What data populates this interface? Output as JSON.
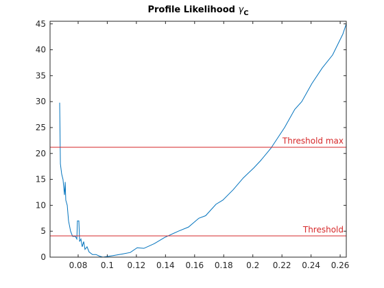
{
  "chart_data": {
    "type": "line",
    "title": "Profile Likelihood",
    "title_symbol": "γ",
    "title_subscript": "C",
    "xlim": [
      0.0607,
      0.2642
    ],
    "ylim": [
      0,
      45.5
    ],
    "xticks": [
      0.08,
      0.1,
      0.12,
      0.14,
      0.16,
      0.18,
      0.2,
      0.22,
      0.24,
      0.26
    ],
    "yticks": [
      0,
      5,
      10,
      15,
      20,
      25,
      30,
      35,
      40,
      45
    ],
    "series": [
      {
        "color": "#0072bd",
        "x": [
          0.0673,
          0.0678,
          0.0687,
          0.0696,
          0.0706,
          0.0711,
          0.0715,
          0.0725,
          0.0734,
          0.0748,
          0.0762,
          0.0781,
          0.0791,
          0.0795,
          0.0805,
          0.081,
          0.0819,
          0.0828,
          0.0838,
          0.0847,
          0.0861,
          0.0875,
          0.0899,
          0.0923,
          0.0946,
          0.097,
          0.0993,
          0.104,
          0.1102,
          0.1158,
          0.1205,
          0.1252,
          0.1323,
          0.1394,
          0.1488,
          0.1558,
          0.1629,
          0.1676,
          0.1747,
          0.1794,
          0.1865,
          0.1935,
          0.2006,
          0.2053,
          0.2124,
          0.2218,
          0.2288,
          0.2336,
          0.2406,
          0.2477,
          0.2548,
          0.2618,
          0.2642
        ],
        "values": [
          29.8,
          18,
          16,
          15,
          12,
          14.5,
          11,
          10,
          7,
          5,
          4,
          4,
          3.5,
          7,
          7,
          3,
          3.5,
          2,
          3,
          1.5,
          2,
          1,
          0.5,
          0.5,
          0.2,
          0.0,
          0.1,
          0.3,
          0.6,
          0.9,
          1.8,
          1.7,
          2.6,
          3.8,
          5,
          5.8,
          7.5,
          8,
          10.2,
          11,
          13,
          15.3,
          17.2,
          18.6,
          21,
          25,
          28.5,
          30,
          33.5,
          36.5,
          39,
          43,
          45
        ]
      }
    ],
    "thresholds": [
      {
        "name": "Threshold max",
        "value": 21.2,
        "color": "#d62728"
      },
      {
        "name": "Threshold",
        "value": 4.1,
        "color": "#d62728"
      }
    ]
  }
}
